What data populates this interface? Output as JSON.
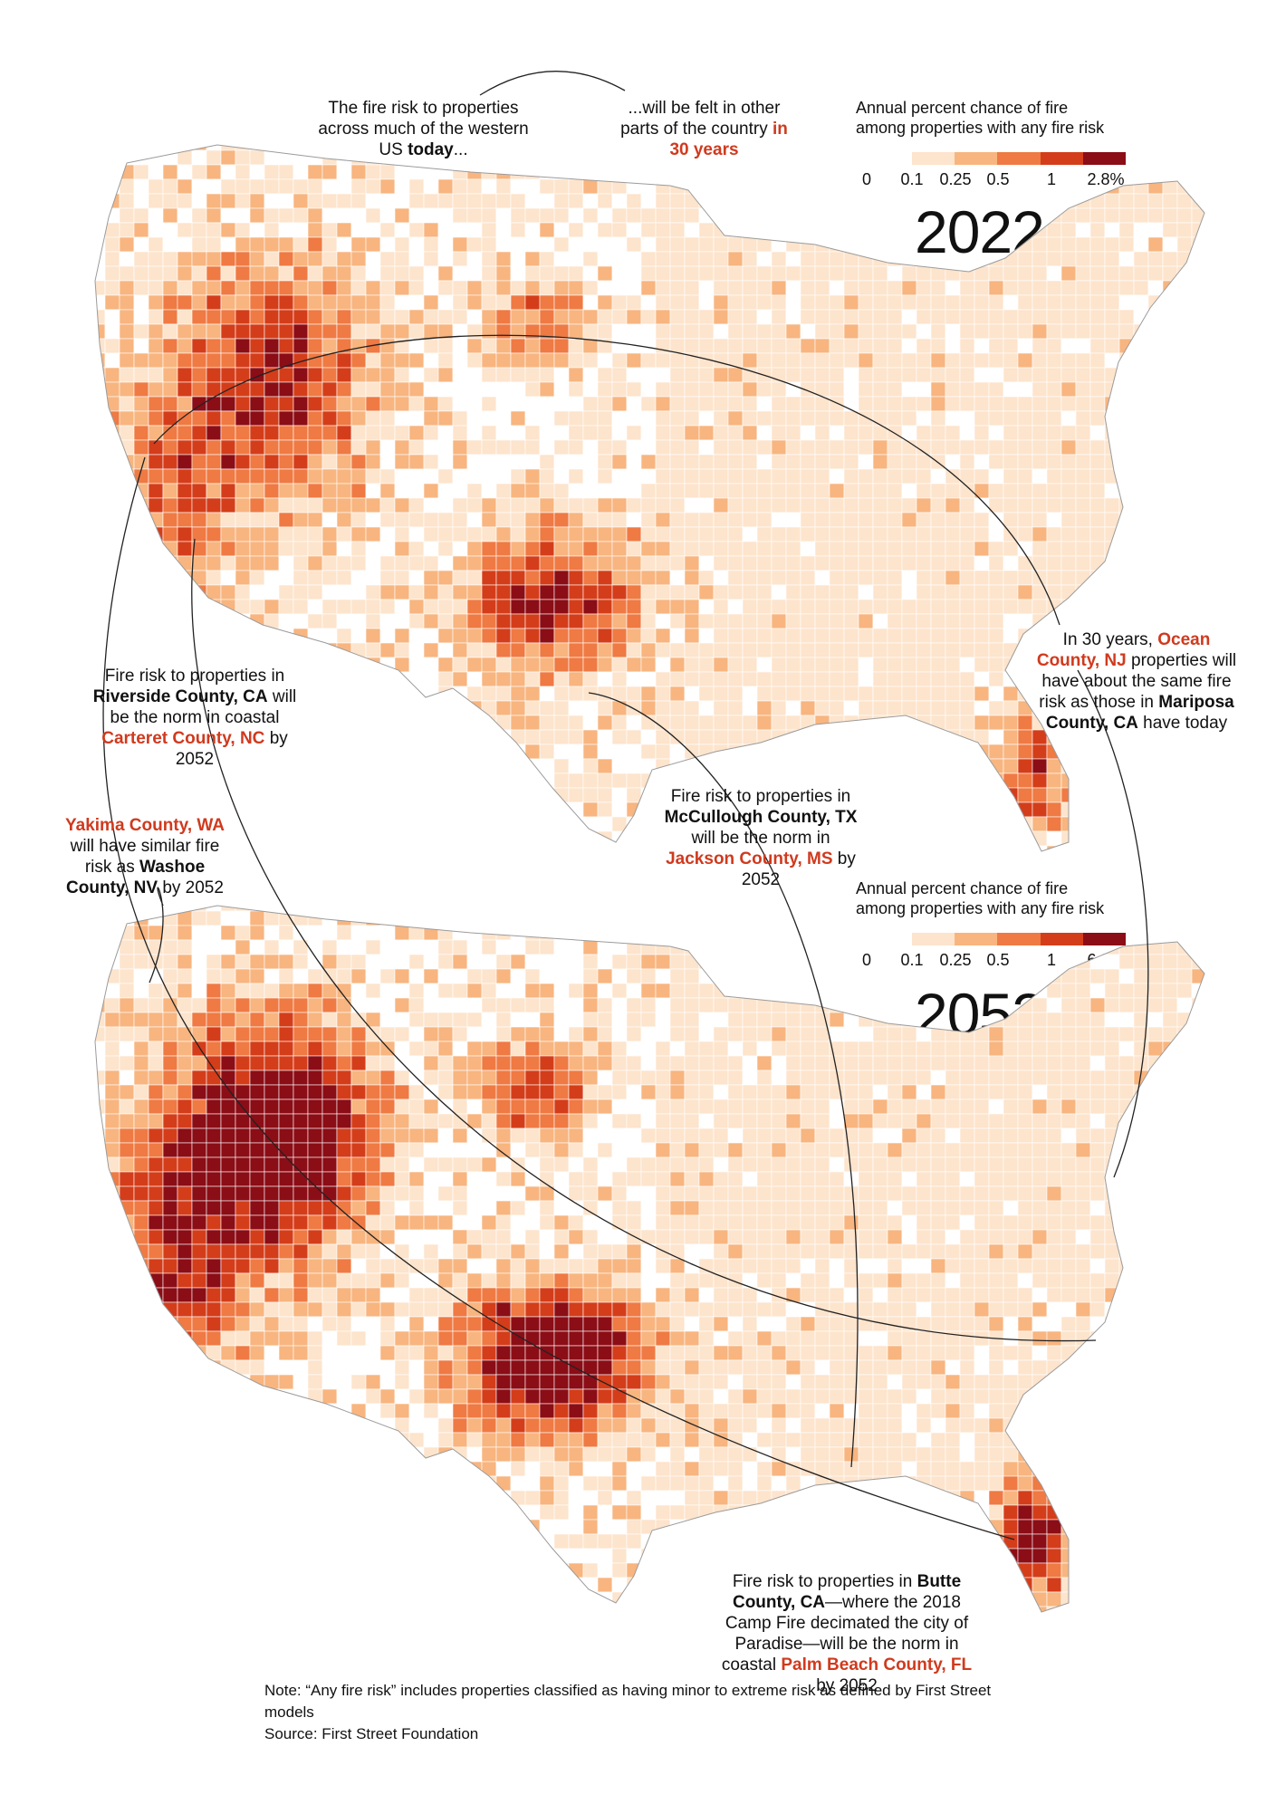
{
  "header_note": {
    "left_text": "The fire risk to properties across much of the western US",
    "left_bold": "today",
    "left_tail": "...",
    "right_text": "...will be felt in other parts of the country",
    "right_red": "in 30 years"
  },
  "legend_colors": [
    "#fde4cc",
    "#f8b57f",
    "#ef7a43",
    "#d43d1a",
    "#8b0d16"
  ],
  "legend_2022": {
    "title": "Annual percent chance of fire among properties with any fire risk",
    "ticks": [
      "0",
      "0.1",
      "0.25",
      "0.5",
      "1",
      "2.8%"
    ]
  },
  "legend_2052": {
    "title": "Annual percent chance of fire among properties with any fire risk",
    "ticks": [
      "0",
      "0.1",
      "0.25",
      "0.5",
      "1",
      "6.2%"
    ]
  },
  "year_2022": "2022",
  "year_2052": "2052",
  "annotations": {
    "riverside": {
      "pre": "Fire risk to properties in",
      "bold": "Riverside County, CA",
      "mid": "will be the norm in coastal",
      "red": "Carteret County, NC",
      "post": "by 2052"
    },
    "yakima": {
      "red": "Yakima County, WA",
      "mid": "will have similar fire risk as",
      "bold": "Washoe County, NV",
      "post": "by 2052"
    },
    "mccullough": {
      "pre": "Fire risk to properties in",
      "bold": "McCullough County, TX",
      "mid": "will be the norm in",
      "red": "Jackson County, MS",
      "post": "by 2052"
    },
    "ocean": {
      "pre": "In 30 years,",
      "red": "Ocean County, NJ",
      "mid": "properties will have about the same fire risk as those in",
      "bold": "Mariposa County, CA",
      "post": "have today"
    },
    "butte": {
      "pre": "Fire risk to properties in",
      "bold": "Butte County, CA",
      "mid": "—where the 2018 Camp Fire decimated the city of Paradise—will be the norm in coastal",
      "red": "Palm Beach County, FL",
      "post": "by 2052"
    }
  },
  "footer": {
    "note": "Note: “Any fire risk” includes properties classified as having minor to extreme risk as defined by First Street models",
    "source": "Source: First Street Foundation"
  }
}
